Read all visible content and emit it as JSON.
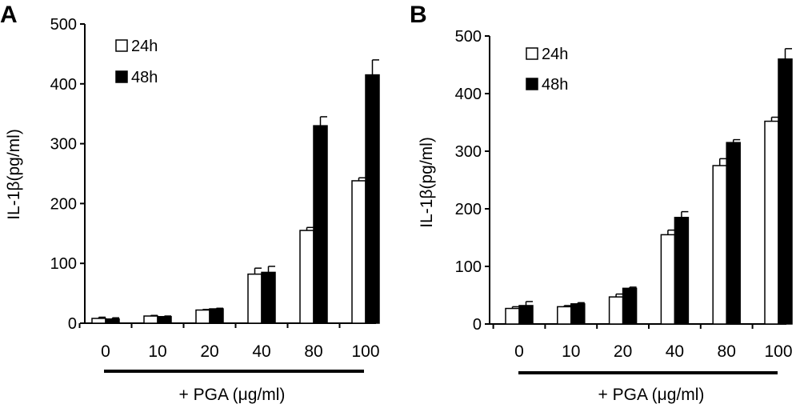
{
  "chart_data": [
    {
      "type": "bar",
      "panel_label": "A",
      "ylabel": "IL-1β(pg/ml)",
      "xlabel": "+ PGA (μg/ml)",
      "categories": [
        "0",
        "10",
        "20",
        "40",
        "80",
        "100"
      ],
      "ylim": [
        0,
        500
      ],
      "yticks": [
        "0",
        "100",
        "200",
        "300",
        "400",
        "500"
      ],
      "grid": false,
      "legend_position": "top-left",
      "series": [
        {
          "name": "24h",
          "color": "#ffffff",
          "values": [
            8,
            12,
            22,
            82,
            155,
            238
          ],
          "errors": [
            2,
            1,
            1,
            10,
            5,
            5
          ]
        },
        {
          "name": "48h",
          "color": "#000000",
          "values": [
            7,
            11,
            24,
            85,
            330,
            415
          ],
          "errors": [
            2,
            1,
            1,
            10,
            15,
            25
          ]
        }
      ]
    },
    {
      "type": "bar",
      "panel_label": "B",
      "ylabel": "IL-1β(pg/ml)",
      "xlabel": "+ PGA (μg/ml)",
      "categories": [
        "0",
        "10",
        "20",
        "40",
        "80",
        "100"
      ],
      "ylim": [
        0,
        500
      ],
      "yticks": [
        "0",
        "100",
        "200",
        "300",
        "400",
        "500"
      ],
      "grid": false,
      "legend_position": "top-left",
      "series": [
        {
          "name": "24h",
          "color": "#ffffff",
          "values": [
            27,
            30,
            47,
            155,
            275,
            352
          ],
          "errors": [
            3,
            2,
            5,
            8,
            12,
            7
          ]
        },
        {
          "name": "48h",
          "color": "#000000",
          "values": [
            32,
            35,
            62,
            185,
            315,
            460
          ],
          "errors": [
            7,
            2,
            2,
            10,
            5,
            18
          ]
        }
      ]
    }
  ]
}
